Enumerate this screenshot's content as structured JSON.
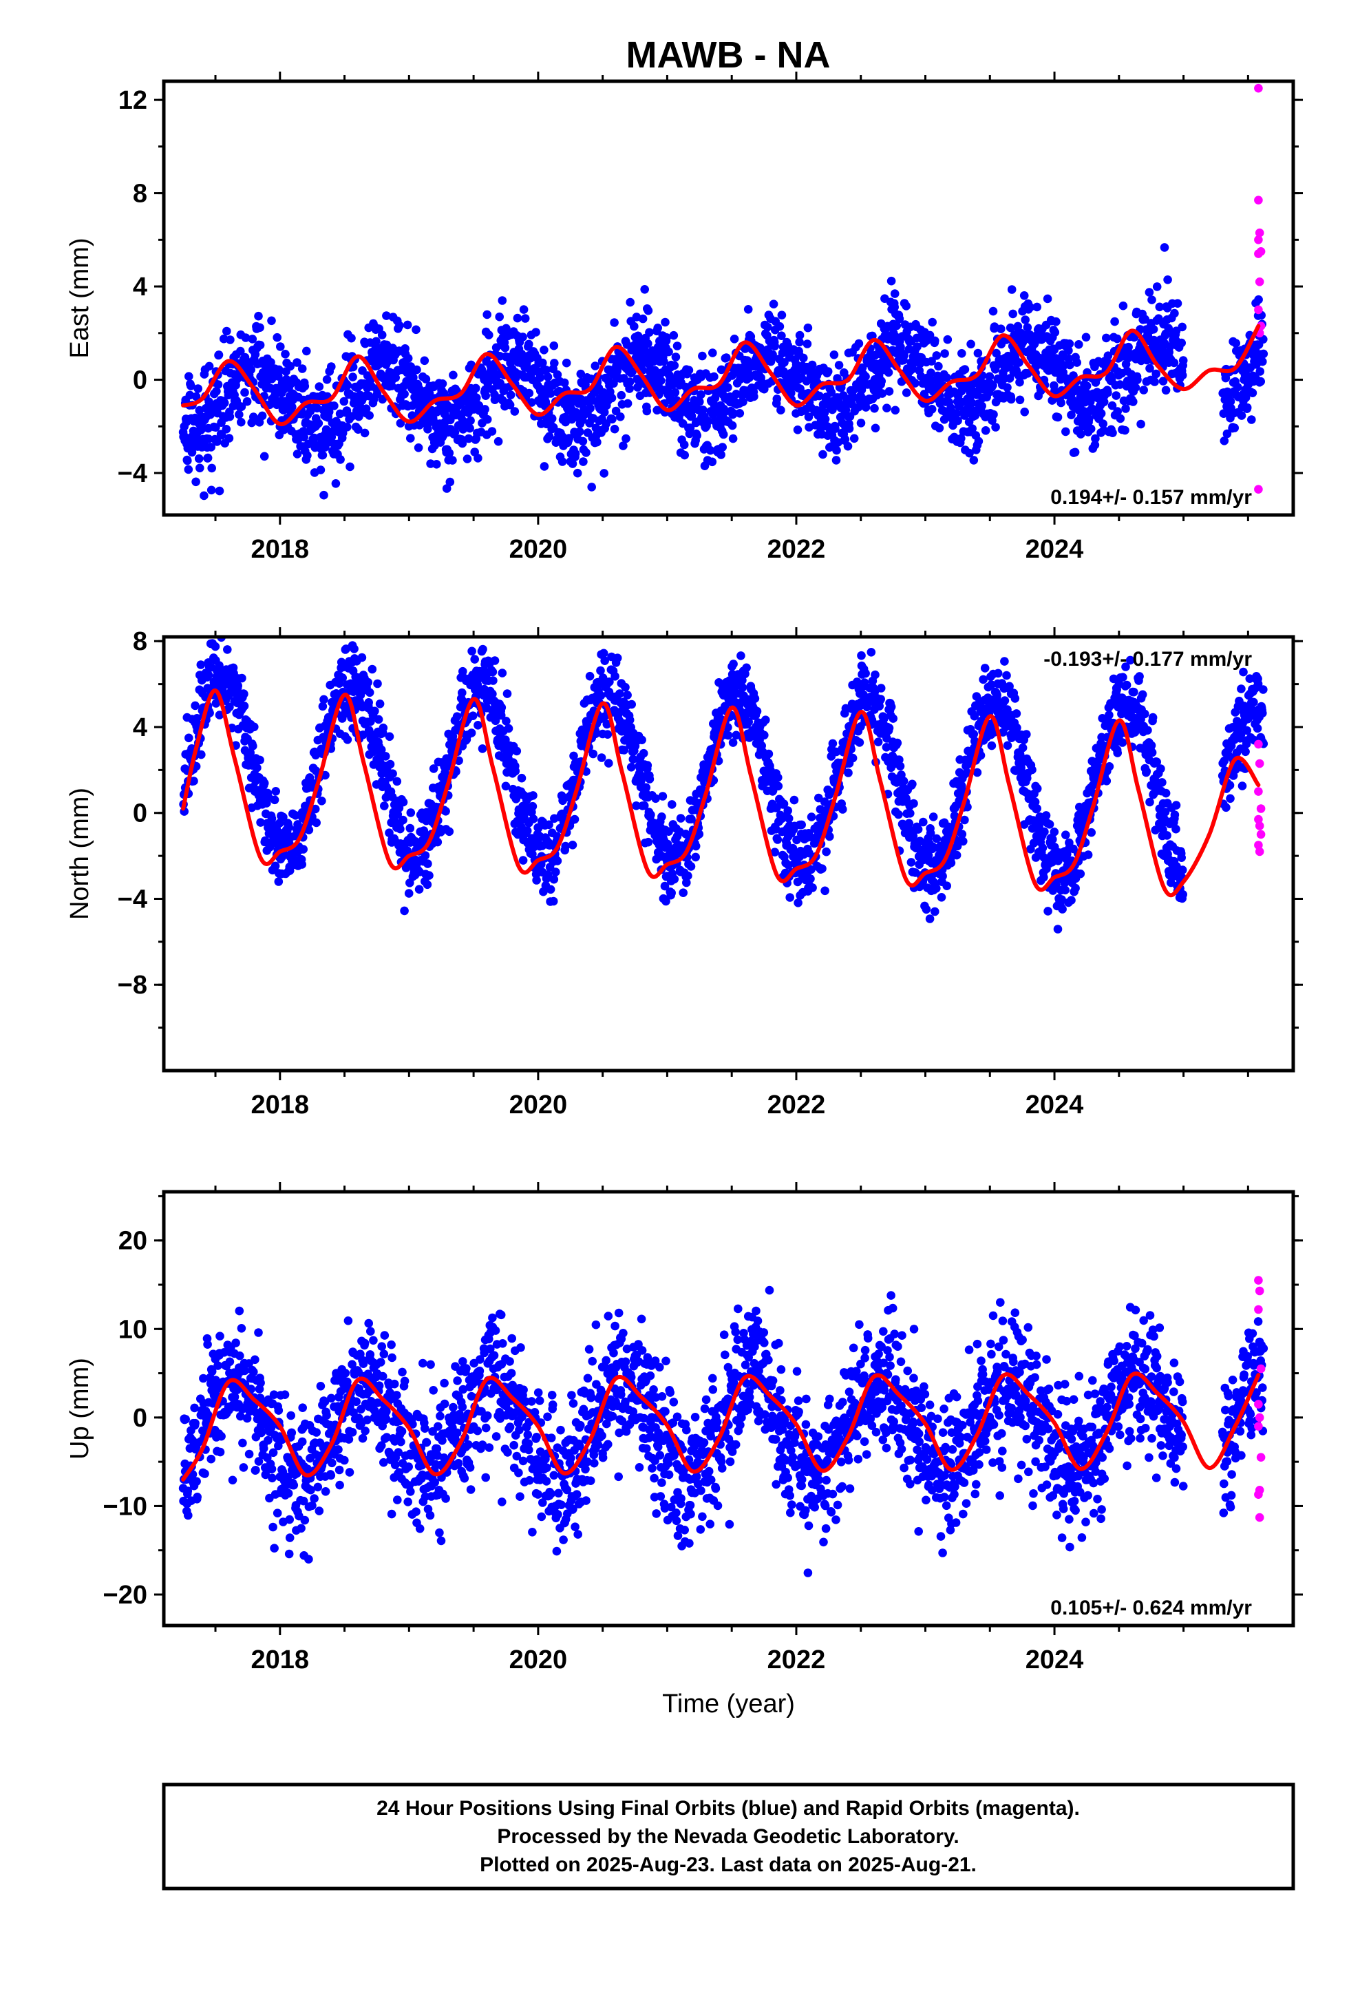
{
  "figure_title": "MAWB - NA",
  "footer": {
    "lines": [
      "24 Hour Positions Using Final Orbits (blue) and Rapid Orbits (magenta).",
      "Processed by the Nevada Geodetic Laboratory.",
      "Plotted on 2025-Aug-23. Last data on 2025-Aug-21."
    ]
  },
  "colors": {
    "final_orbits": "#0000ff",
    "rapid_orbits": "#ff00ff",
    "model_fit": "#ff0000",
    "frame": "#000000"
  },
  "chart_data": [
    {
      "type": "scatter",
      "component": "east",
      "ylabel": "East (mm)",
      "xlabel": "",
      "xlim": [
        2017.1,
        2025.85
      ],
      "ylim": [
        -5.8,
        12.8
      ],
      "xticks": [
        2018,
        2020,
        2022,
        2024
      ],
      "xtick_labels": [
        "2018",
        "2020",
        "2022",
        "2024"
      ],
      "yticks": [
        -4,
        0,
        4,
        8,
        12
      ],
      "ytick_labels": [
        "−4",
        "0",
        "4",
        "8",
        "12"
      ],
      "rate_label": "0.194+/- 0.157 mm/yr",
      "rate_position": "bottom-right",
      "series": [
        {
          "role": "final",
          "model": {
            "start": 2017.25,
            "end": 2025.62,
            "offset": -0.2,
            "trend": 0.194,
            "amp": 1.3,
            "phase": 2017.55,
            "noise": 1.05,
            "gap": [
              2025.0,
              2025.3
            ]
          }
        },
        {
          "role": "rapid",
          "points": [
            [
              2025.58,
              12.5
            ],
            [
              2025.58,
              7.7
            ],
            [
              2025.59,
              6.3
            ],
            [
              2025.58,
              6.0
            ],
            [
              2025.6,
              5.5
            ],
            [
              2025.58,
              5.4
            ],
            [
              2025.59,
              4.2
            ],
            [
              2025.58,
              3.0
            ],
            [
              2025.6,
              2.3
            ],
            [
              2025.59,
              2.0
            ],
            [
              2025.58,
              -4.7
            ]
          ]
        }
      ],
      "fit": {
        "x": [
          2017.25,
          2017.4,
          2017.6,
          2017.8,
          2018.0,
          2018.2,
          2018.4,
          2018.6,
          2018.8,
          2019.0,
          2019.2,
          2019.4,
          2019.6,
          2019.8,
          2020.0,
          2020.2,
          2020.4,
          2020.6,
          2020.8,
          2021.0,
          2021.2,
          2021.4,
          2021.6,
          2021.8,
          2022.0,
          2022.2,
          2022.4,
          2022.6,
          2022.8,
          2023.0,
          2023.2,
          2023.4,
          2023.6,
          2023.8,
          2024.0,
          2024.2,
          2024.4,
          2024.6,
          2024.8,
          2025.0,
          2025.2,
          2025.4,
          2025.58
        ],
        "y": [
          -1.1,
          -0.8,
          0.8,
          -0.4,
          -1.9,
          -1.0,
          -0.8,
          1.0,
          -0.5,
          -1.8,
          -0.9,
          -0.6,
          1.1,
          -0.2,
          -1.5,
          -0.6,
          -0.4,
          1.4,
          0.2,
          -1.3,
          -0.4,
          -0.2,
          1.6,
          0.3,
          -1.1,
          -0.2,
          0.0,
          1.7,
          0.4,
          -0.9,
          -0.1,
          0.2,
          1.9,
          0.6,
          -0.7,
          0.1,
          0.3,
          2.1,
          0.6,
          -0.4,
          0.4,
          0.5,
          2.3
        ]
      }
    },
    {
      "type": "scatter",
      "component": "north",
      "ylabel": "North (mm)",
      "xlabel": "",
      "xlim": [
        2017.1,
        2025.85
      ],
      "ylim": [
        -12.0,
        8.2
      ],
      "xticks": [
        2018,
        2020,
        2022,
        2024
      ],
      "xtick_labels": [
        "2018",
        "2020",
        "2022",
        "2024"
      ],
      "yticks": [
        -8,
        -4,
        0,
        4,
        8
      ],
      "ytick_labels": [
        "−8",
        "−4",
        "0",
        "4",
        "8"
      ],
      "rate_label": "-0.193+/- 0.177 mm/yr",
      "rate_position": "top-right",
      "series": [
        {
          "role": "final",
          "model": {
            "start": 2017.25,
            "end": 2025.62,
            "offset": 1.6,
            "trend": -0.193,
            "amp": 4.0,
            "phase": 2017.3,
            "noise": 1.0,
            "gap": [
              2025.0,
              2025.3
            ]
          }
        },
        {
          "role": "rapid",
          "points": [
            [
              2025.58,
              3.2
            ],
            [
              2025.59,
              2.3
            ],
            [
              2025.58,
              1.0
            ],
            [
              2025.6,
              0.2
            ],
            [
              2025.58,
              -0.3
            ],
            [
              2025.59,
              -0.6
            ],
            [
              2025.6,
              -1.0
            ],
            [
              2025.58,
              -1.5
            ],
            [
              2025.59,
              -1.8
            ]
          ]
        }
      ],
      "fit": {
        "x": [
          2017.25,
          2017.35,
          2017.5,
          2017.65,
          2017.85,
          2018.0,
          2018.15,
          2018.3,
          2018.5,
          2018.65,
          2018.85,
          2019.0,
          2019.15,
          2019.3,
          2019.5,
          2019.65,
          2019.85,
          2020.0,
          2020.15,
          2020.3,
          2020.5,
          2020.65,
          2020.85,
          2021.0,
          2021.15,
          2021.3,
          2021.5,
          2021.65,
          2021.85,
          2022.0,
          2022.15,
          2022.3,
          2022.5,
          2022.65,
          2022.85,
          2023.0,
          2023.15,
          2023.3,
          2023.5,
          2023.65,
          2023.85,
          2024.0,
          2024.15,
          2024.3,
          2024.5,
          2024.65,
          2024.85,
          2025.0,
          2025.2,
          2025.4,
          2025.58
        ],
        "y": [
          0.2,
          3.0,
          5.7,
          2.5,
          -2.1,
          -1.8,
          -1.2,
          1.5,
          5.5,
          2.3,
          -2.3,
          -2.0,
          -1.4,
          1.3,
          5.3,
          2.1,
          -2.5,
          -2.2,
          -1.6,
          1.1,
          5.1,
          1.9,
          -2.7,
          -2.4,
          -1.8,
          0.9,
          4.9,
          1.7,
          -2.9,
          -2.6,
          -2.0,
          0.7,
          4.7,
          1.5,
          -3.1,
          -2.8,
          -2.2,
          0.5,
          4.5,
          1.3,
          -3.3,
          -3.0,
          -2.4,
          0.3,
          4.3,
          1.1,
          -3.5,
          -3.2,
          -1.0,
          2.5,
          1.3
        ]
      }
    },
    {
      "type": "scatter",
      "component": "up",
      "ylabel": "Up (mm)",
      "xlabel": "Time (year)",
      "xlim": [
        2017.1,
        2025.85
      ],
      "ylim": [
        -23.5,
        25.5
      ],
      "xticks": [
        2018,
        2020,
        2022,
        2024
      ],
      "xtick_labels": [
        "2018",
        "2020",
        "2022",
        "2024"
      ],
      "yticks": [
        -20,
        -10,
        0,
        10,
        20
      ],
      "ytick_labels": [
        "−20",
        "−10",
        "0",
        "10",
        "20"
      ],
      "rate_label": "0.105+/- 0.624 mm/yr",
      "rate_position": "bottom-right",
      "series": [
        {
          "role": "final",
          "model": {
            "start": 2017.25,
            "end": 2025.62,
            "offset": -1.0,
            "trend": 0.105,
            "amp": 5.2,
            "phase": 2017.4,
            "noise": 3.8,
            "gap": [
              2025.0,
              2025.3
            ]
          }
        },
        {
          "role": "rapid",
          "points": [
            [
              2025.58,
              15.5
            ],
            [
              2025.59,
              14.3
            ],
            [
              2025.58,
              12.2
            ],
            [
              2025.6,
              5.5
            ],
            [
              2025.58,
              1.5
            ],
            [
              2025.59,
              0.0
            ],
            [
              2025.58,
              -1.0
            ],
            [
              2025.6,
              -4.5
            ],
            [
              2025.59,
              -8.2
            ],
            [
              2025.58,
              -8.7
            ],
            [
              2025.59,
              -11.3
            ]
          ]
        }
      ],
      "fit": {
        "x": [
          2017.25,
          2017.4,
          2017.6,
          2017.8,
          2018.0,
          2018.2,
          2018.4,
          2018.6,
          2018.8,
          2019.0,
          2019.2,
          2019.4,
          2019.6,
          2019.8,
          2020.0,
          2020.2,
          2020.4,
          2020.6,
          2020.8,
          2021.0,
          2021.2,
          2021.4,
          2021.6,
          2021.8,
          2022.0,
          2022.2,
          2022.4,
          2022.6,
          2022.8,
          2023.0,
          2023.2,
          2023.4,
          2023.6,
          2023.8,
          2024.0,
          2024.2,
          2024.4,
          2024.6,
          2024.8,
          2025.0,
          2025.2,
          2025.4,
          2025.58
        ],
        "y": [
          -7.0,
          -3.5,
          4.0,
          2.0,
          -1.0,
          -6.5,
          -3.0,
          4.2,
          2.0,
          -1.2,
          -6.4,
          -2.8,
          4.3,
          2.2,
          -1.0,
          -6.3,
          -2.6,
          4.4,
          2.3,
          -0.9,
          -6.1,
          -2.4,
          4.5,
          2.4,
          -0.8,
          -6.0,
          -2.2,
          4.6,
          2.5,
          -0.7,
          -5.9,
          -2.0,
          4.7,
          2.6,
          -0.6,
          -5.8,
          -1.8,
          4.8,
          2.7,
          -0.5,
          -5.7,
          -1.0,
          4.8
        ]
      }
    }
  ]
}
